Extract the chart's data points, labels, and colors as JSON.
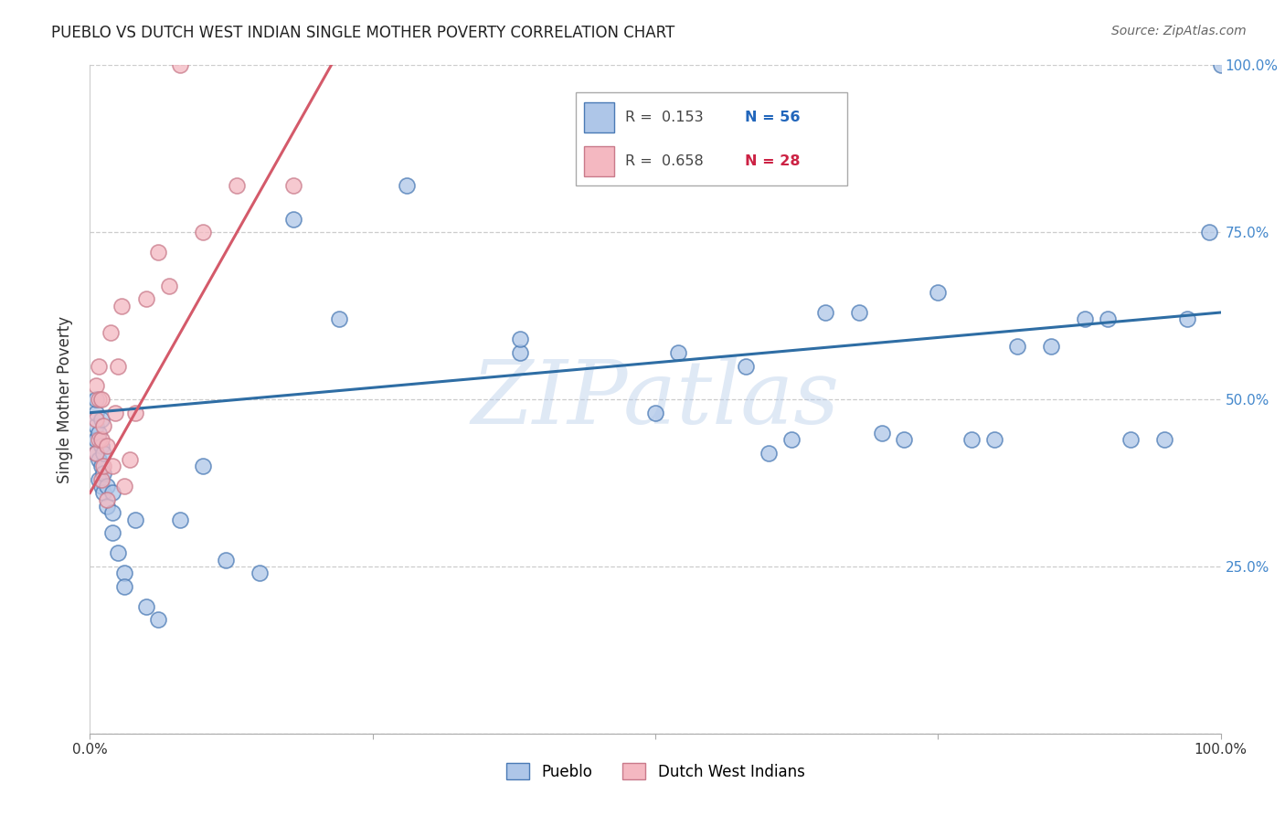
{
  "title": "PUEBLO VS DUTCH WEST INDIAN SINGLE MOTHER POVERTY CORRELATION CHART",
  "source": "Source: ZipAtlas.com",
  "ylabel": "Single Mother Poverty",
  "watermark": "ZIPatlas",
  "xlim": [
    0.0,
    1.0
  ],
  "ylim": [
    0.0,
    1.0
  ],
  "pueblo_r": 0.153,
  "pueblo_n": 56,
  "dutch_r": 0.658,
  "dutch_n": 28,
  "pueblo_color": "#aec6e8",
  "pueblo_edge_color": "#4a7ab5",
  "pueblo_line_color": "#2e6da4",
  "dutch_color": "#f4b8c1",
  "dutch_edge_color": "#c97a8a",
  "dutch_line_color": "#d45a6a",
  "background_color": "#ffffff",
  "grid_color": "#cccccc",
  "pueblo_x": [
    0.005,
    0.005,
    0.005,
    0.005,
    0.005,
    0.008,
    0.008,
    0.008,
    0.01,
    0.01,
    0.01,
    0.01,
    0.012,
    0.012,
    0.012,
    0.015,
    0.015,
    0.02,
    0.02,
    0.02,
    0.025,
    0.03,
    0.03,
    0.04,
    0.05,
    0.06,
    0.08,
    0.1,
    0.12,
    0.15,
    0.18,
    0.22,
    0.28,
    0.38,
    0.38,
    0.5,
    0.52,
    0.58,
    0.6,
    0.62,
    0.65,
    0.68,
    0.7,
    0.72,
    0.75,
    0.78,
    0.8,
    0.82,
    0.85,
    0.88,
    0.9,
    0.92,
    0.95,
    0.97,
    0.99,
    1.0
  ],
  "pueblo_y": [
    0.42,
    0.44,
    0.46,
    0.48,
    0.5,
    0.38,
    0.41,
    0.45,
    0.37,
    0.4,
    0.43,
    0.47,
    0.36,
    0.39,
    0.42,
    0.34,
    0.37,
    0.3,
    0.33,
    0.36,
    0.27,
    0.24,
    0.22,
    0.32,
    0.19,
    0.17,
    0.32,
    0.4,
    0.26,
    0.24,
    0.77,
    0.62,
    0.82,
    0.57,
    0.59,
    0.48,
    0.57,
    0.55,
    0.42,
    0.44,
    0.63,
    0.63,
    0.45,
    0.44,
    0.66,
    0.44,
    0.44,
    0.58,
    0.58,
    0.62,
    0.62,
    0.44,
    0.44,
    0.62,
    0.75,
    1.0
  ],
  "dutch_x": [
    0.005,
    0.005,
    0.005,
    0.008,
    0.008,
    0.008,
    0.01,
    0.01,
    0.01,
    0.012,
    0.012,
    0.015,
    0.015,
    0.018,
    0.02,
    0.022,
    0.025,
    0.028,
    0.03,
    0.035,
    0.04,
    0.05,
    0.06,
    0.07,
    0.08,
    0.1,
    0.13,
    0.18
  ],
  "dutch_y": [
    0.42,
    0.47,
    0.52,
    0.44,
    0.5,
    0.55,
    0.38,
    0.44,
    0.5,
    0.4,
    0.46,
    0.35,
    0.43,
    0.6,
    0.4,
    0.48,
    0.55,
    0.64,
    0.37,
    0.41,
    0.48,
    0.65,
    0.72,
    0.67,
    1.0,
    0.75,
    0.82,
    0.82
  ],
  "legend_pueblo_label": "Pueblo",
  "legend_dutch_label": "Dutch West Indians",
  "pueblo_trendline_x": [
    0.0,
    1.0
  ],
  "pueblo_trendline_y": [
    0.48,
    0.63
  ],
  "dutch_trendline_x": [
    0.0,
    0.22
  ],
  "dutch_trendline_y": [
    0.36,
    1.02
  ]
}
